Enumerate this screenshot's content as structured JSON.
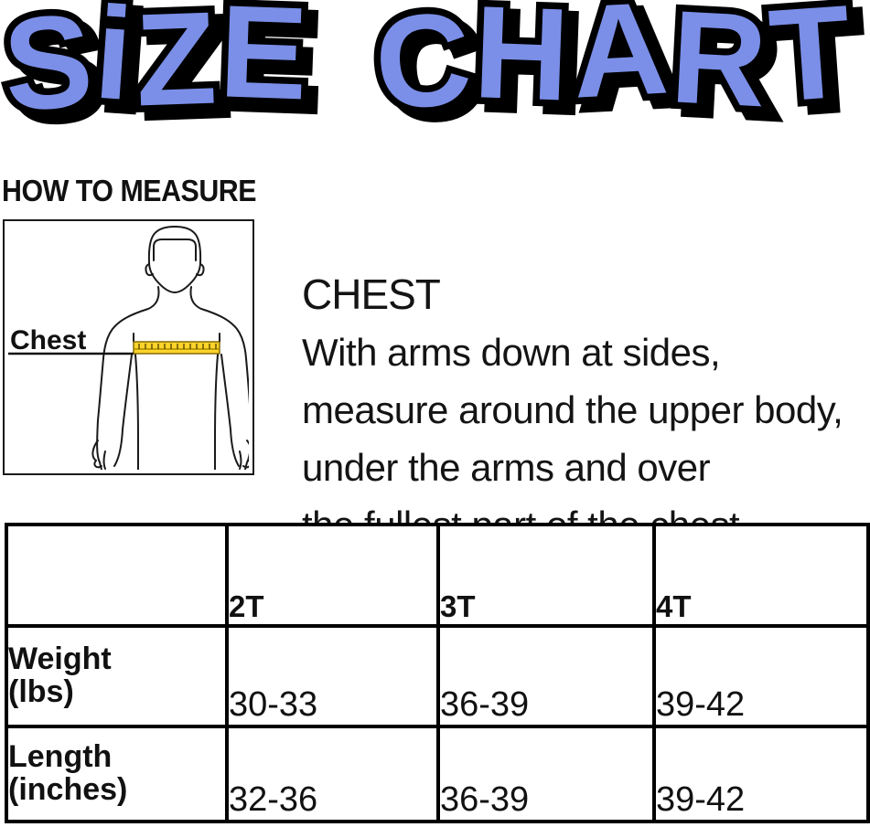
{
  "header": {
    "title": "SiZE CHART",
    "title_fill_color": "#7b8fe8",
    "title_outline_color": "#000000"
  },
  "how_to_measure": {
    "heading": "HOW TO MEASURE",
    "diagram": {
      "chest_label": "Chest",
      "tape_color": "#ffd42a"
    },
    "instructions": {
      "heading": "CHEST",
      "body": "With arms down at sides,\nmeasure around the upper body,\nunder the arms and over\nthe fullest part of the chest."
    }
  },
  "size_table": {
    "columns": [
      "2T",
      "3T",
      "4T"
    ],
    "rows": [
      {
        "label": "Weight\n(lbs)",
        "values": [
          "30-33",
          "36-39",
          "39-42"
        ]
      },
      {
        "label": "Length\n(inches)",
        "values": [
          "32-36",
          "36-39",
          "39-42"
        ]
      }
    ]
  }
}
